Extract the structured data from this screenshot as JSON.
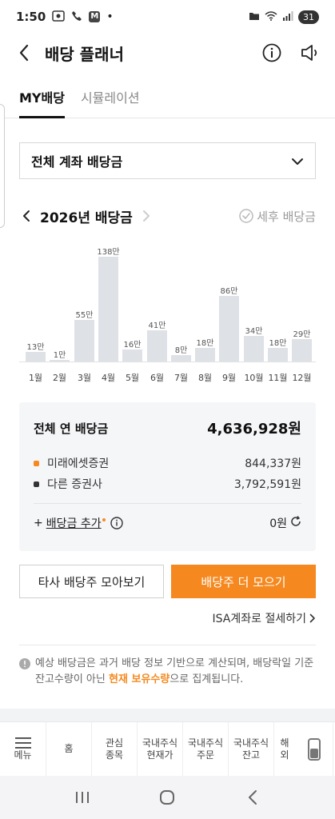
{
  "status_bar": {
    "time": "1:50",
    "battery": "31"
  },
  "header": {
    "title": "배당 플래너"
  },
  "tabs": [
    {
      "label": "MY배당",
      "active": true
    },
    {
      "label": "시뮬레이션",
      "active": false
    }
  ],
  "account_select": {
    "label": "전체 계좌 배당금"
  },
  "year_nav": {
    "label": "2026년 배당금",
    "after_tax_label": "세후 배당금"
  },
  "chart_data": {
    "type": "bar",
    "categories": [
      "1월",
      "2월",
      "3월",
      "4월",
      "5월",
      "6월",
      "7월",
      "8월",
      "9월",
      "10월",
      "11월",
      "12월"
    ],
    "values": [
      13,
      1,
      55,
      138,
      16,
      41,
      8,
      18,
      86,
      34,
      18,
      29
    ],
    "value_labels": [
      "13만",
      "1만",
      "55만",
      "138만",
      "16만",
      "41만",
      "8만",
      "18만",
      "86만",
      "34만",
      "18만",
      "29만"
    ],
    "ylim": [
      0,
      138
    ],
    "bar_color": "#dee1e5",
    "grid": false
  },
  "summary": {
    "total_label": "전체 연 배당금",
    "total_value": "4,636,928원",
    "rows": [
      {
        "label": "미래에셋증권",
        "value": "844,337원",
        "color": "#f5891f"
      },
      {
        "label": "다른 증권사",
        "value": "3,792,591원",
        "color": "#333333"
      }
    ],
    "add_prefix": "+",
    "add_label": "배당금 추가",
    "add_value": "0원"
  },
  "buttons": {
    "other_label": "타사 배당주 모아보기",
    "more_label": "배당주 더 모으기",
    "primary_color": "#f5891f"
  },
  "isa_link": {
    "label": "ISA계좌로 절세하기"
  },
  "notice": {
    "part1": "예상 배당금은 과거 배당 정보 기반으로 계산되며, 배당락일 기준 잔고수량이 아닌 ",
    "highlight": "현재 보유수량",
    "part2": "으로 집계됩니다."
  },
  "bottom_nav": {
    "menu": "메뉴",
    "items": [
      {
        "line1": "홈",
        "line2": ""
      },
      {
        "line1": "관심",
        "line2": "종목"
      },
      {
        "line1": "국내주식",
        "line2": "현재가"
      },
      {
        "line1": "국내주식",
        "line2": "주문"
      },
      {
        "line1": "국내주식",
        "line2": "잔고"
      }
    ],
    "partial": {
      "line1": "해",
      "line2": "외"
    }
  }
}
